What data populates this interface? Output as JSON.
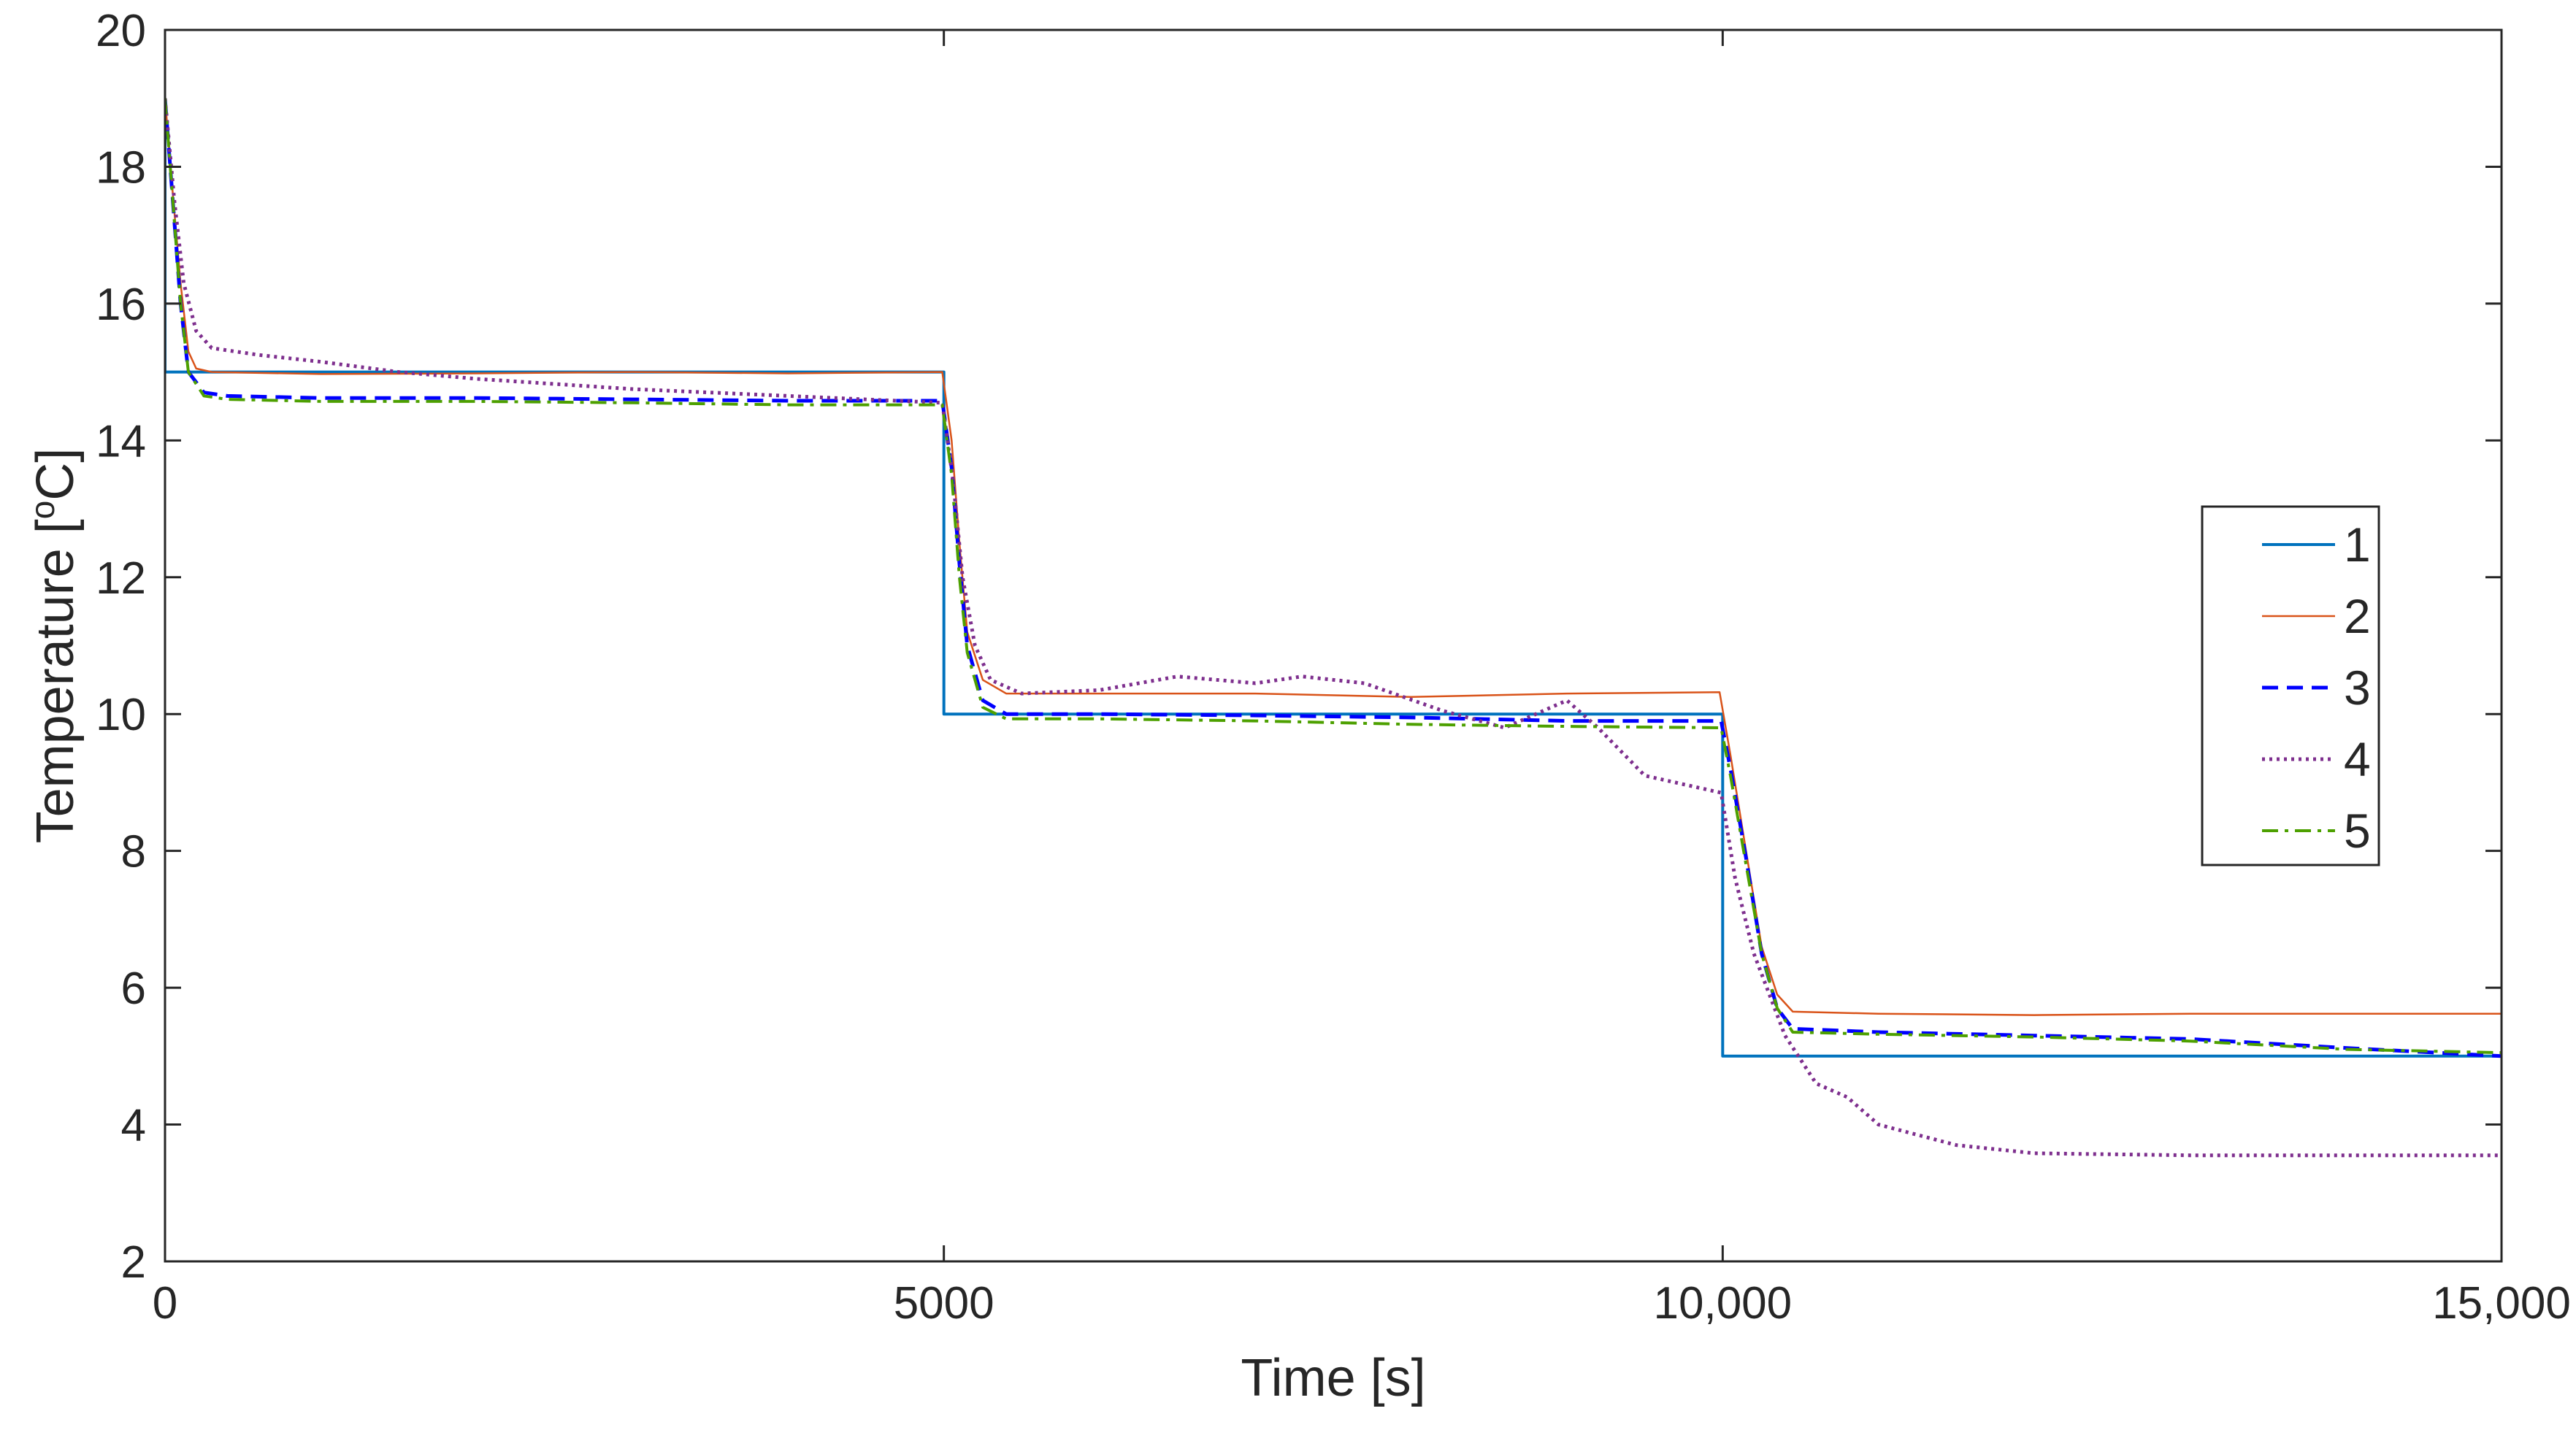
{
  "chart_data": {
    "type": "line",
    "title": "",
    "xlabel": "Time [s]",
    "ylabel_prefix": "Temperature [",
    "ylabel_sup": "o",
    "ylabel_suffix": "C]",
    "xlim": [
      0,
      15000
    ],
    "ylim": [
      2,
      20
    ],
    "xticks": [
      0,
      5000,
      10000,
      15000
    ],
    "xtick_labels": [
      "0",
      "5000",
      "10,000",
      "15,000"
    ],
    "yticks": [
      2,
      4,
      6,
      8,
      10,
      12,
      14,
      16,
      18,
      20
    ],
    "ytick_labels": [
      "2",
      "4",
      "6",
      "8",
      "10",
      "12",
      "14",
      "16",
      "18",
      "20"
    ],
    "grid": false,
    "legend_position": "center-right",
    "series": [
      {
        "name": "1",
        "color": "#0072BD",
        "style": "solid",
        "width": 4,
        "points": [
          [
            0,
            19
          ],
          [
            0,
            15
          ],
          [
            5000,
            15
          ],
          [
            5000,
            10
          ],
          [
            10000,
            10
          ],
          [
            10000,
            5
          ],
          [
            15000,
            5
          ]
        ]
      },
      {
        "name": "2",
        "color": "#D95319",
        "style": "solid",
        "width": 2.5,
        "points": [
          [
            0,
            19
          ],
          [
            50,
            17.6
          ],
          [
            100,
            16.3
          ],
          [
            150,
            15.3
          ],
          [
            200,
            15.05
          ],
          [
            300,
            15.0
          ],
          [
            1000,
            14.97
          ],
          [
            2000,
            14.98
          ],
          [
            3000,
            15.0
          ],
          [
            4000,
            14.98
          ],
          [
            4990,
            15.0
          ],
          [
            5050,
            14.0
          ],
          [
            5100,
            12.5
          ],
          [
            5150,
            11.2
          ],
          [
            5250,
            10.5
          ],
          [
            5400,
            10.3
          ],
          [
            6000,
            10.3
          ],
          [
            7000,
            10.3
          ],
          [
            8000,
            10.25
          ],
          [
            9000,
            10.3
          ],
          [
            9980,
            10.32
          ],
          [
            10050,
            9.4
          ],
          [
            10150,
            8.0
          ],
          [
            10250,
            6.6
          ],
          [
            10350,
            5.9
          ],
          [
            10450,
            5.65
          ],
          [
            11000,
            5.62
          ],
          [
            12000,
            5.6
          ],
          [
            13000,
            5.62
          ],
          [
            14000,
            5.62
          ],
          [
            15000,
            5.62
          ]
        ]
      },
      {
        "name": "3",
        "color": "#0000FF",
        "style": "dashed",
        "width": 5,
        "points": [
          [
            0,
            19
          ],
          [
            50,
            17.5
          ],
          [
            100,
            16.0
          ],
          [
            150,
            15.0
          ],
          [
            250,
            14.7
          ],
          [
            400,
            14.65
          ],
          [
            1000,
            14.62
          ],
          [
            2000,
            14.62
          ],
          [
            3000,
            14.6
          ],
          [
            4000,
            14.58
          ],
          [
            4990,
            14.58
          ],
          [
            5050,
            13.6
          ],
          [
            5100,
            12.2
          ],
          [
            5150,
            11.0
          ],
          [
            5250,
            10.2
          ],
          [
            5400,
            10.0
          ],
          [
            6000,
            10.0
          ],
          [
            7000,
            9.98
          ],
          [
            8000,
            9.95
          ],
          [
            9000,
            9.9
          ],
          [
            9990,
            9.9
          ],
          [
            10050,
            9.2
          ],
          [
            10150,
            7.9
          ],
          [
            10250,
            6.5
          ],
          [
            10350,
            5.7
          ],
          [
            10450,
            5.4
          ],
          [
            11000,
            5.35
          ],
          [
            12000,
            5.3
          ],
          [
            13000,
            5.25
          ],
          [
            14000,
            5.12
          ],
          [
            15000,
            5.0
          ]
        ]
      },
      {
        "name": "4",
        "color": "#7E2F8E",
        "style": "dotted",
        "width": 5,
        "points": [
          [
            0,
            19
          ],
          [
            60,
            17.5
          ],
          [
            120,
            16.3
          ],
          [
            200,
            15.6
          ],
          [
            300,
            15.35
          ],
          [
            600,
            15.25
          ],
          [
            1000,
            15.15
          ],
          [
            1500,
            15.0
          ],
          [
            2000,
            14.9
          ],
          [
            3000,
            14.75
          ],
          [
            4000,
            14.65
          ],
          [
            4990,
            14.55
          ],
          [
            5060,
            13.4
          ],
          [
            5120,
            12.0
          ],
          [
            5200,
            11.0
          ],
          [
            5300,
            10.5
          ],
          [
            5500,
            10.3
          ],
          [
            6000,
            10.35
          ],
          [
            6500,
            10.55
          ],
          [
            7000,
            10.45
          ],
          [
            7300,
            10.55
          ],
          [
            7700,
            10.45
          ],
          [
            8200,
            10.05
          ],
          [
            8600,
            9.8
          ],
          [
            9000,
            10.2
          ],
          [
            9200,
            9.8
          ],
          [
            9500,
            9.1
          ],
          [
            9990,
            8.85
          ],
          [
            10080,
            7.6
          ],
          [
            10200,
            6.5
          ],
          [
            10400,
            5.3
          ],
          [
            10600,
            4.6
          ],
          [
            10800,
            4.4
          ],
          [
            11000,
            4.0
          ],
          [
            11500,
            3.7
          ],
          [
            12000,
            3.58
          ],
          [
            13000,
            3.55
          ],
          [
            14000,
            3.55
          ],
          [
            15000,
            3.55
          ]
        ]
      },
      {
        "name": "5",
        "color": "#4DA000",
        "style": "dashdot",
        "width": 4,
        "points": [
          [
            0,
            19
          ],
          [
            50,
            17.5
          ],
          [
            100,
            16.0
          ],
          [
            150,
            15.0
          ],
          [
            250,
            14.65
          ],
          [
            400,
            14.6
          ],
          [
            1000,
            14.57
          ],
          [
            2000,
            14.57
          ],
          [
            3000,
            14.55
          ],
          [
            4000,
            14.52
          ],
          [
            4990,
            14.52
          ],
          [
            5050,
            13.5
          ],
          [
            5100,
            12.0
          ],
          [
            5150,
            10.9
          ],
          [
            5250,
            10.1
          ],
          [
            5400,
            9.93
          ],
          [
            6000,
            9.93
          ],
          [
            7000,
            9.9
          ],
          [
            8000,
            9.85
          ],
          [
            9000,
            9.82
          ],
          [
            9990,
            9.8
          ],
          [
            10050,
            9.1
          ],
          [
            10150,
            7.8
          ],
          [
            10250,
            6.5
          ],
          [
            10350,
            5.7
          ],
          [
            10450,
            5.35
          ],
          [
            11000,
            5.32
          ],
          [
            12000,
            5.28
          ],
          [
            13000,
            5.22
          ],
          [
            14000,
            5.1
          ],
          [
            15000,
            5.05
          ]
        ]
      }
    ]
  }
}
